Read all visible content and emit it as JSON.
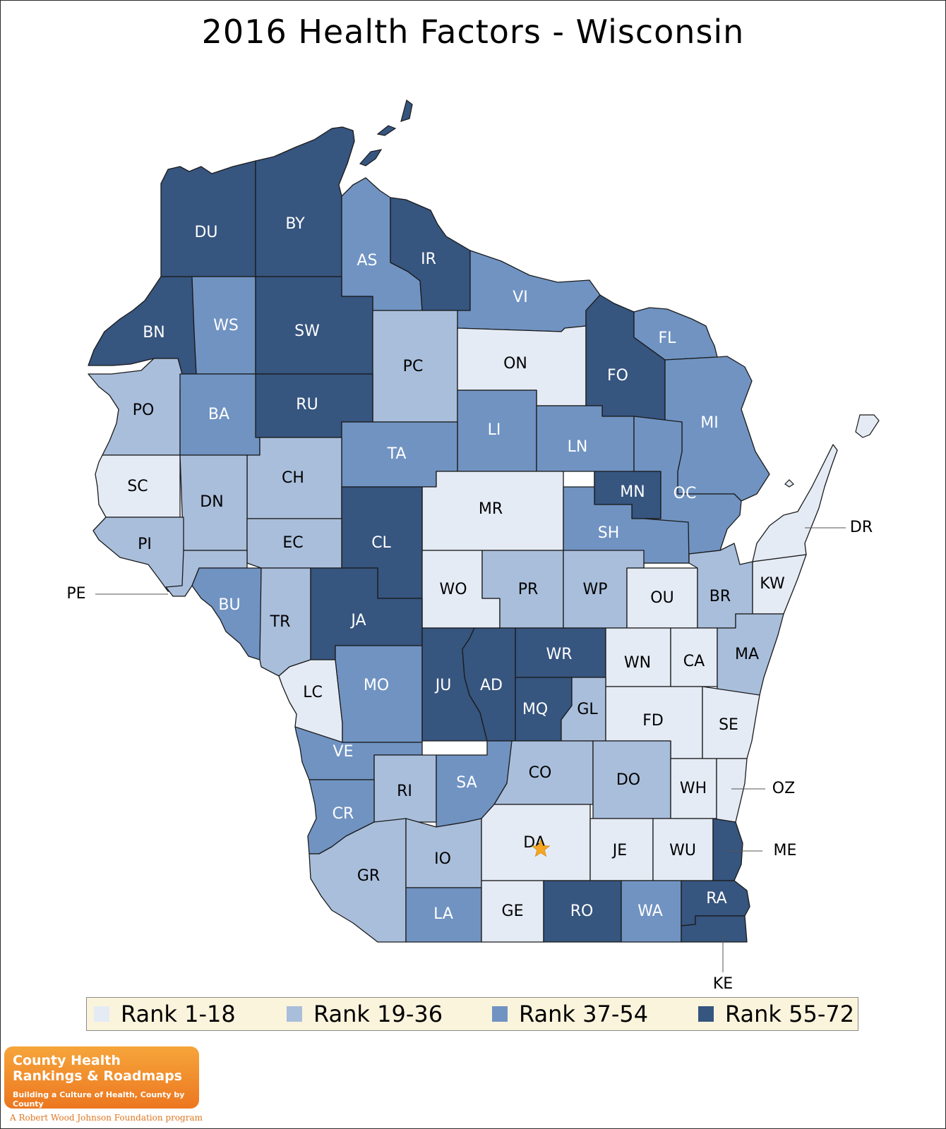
{
  "title": "2016 Health Factors - Wisconsin",
  "legend": [
    {
      "label": "Rank 1-18",
      "color": "#e4ebf5"
    },
    {
      "label": "Rank 19-36",
      "color": "#a9bedb"
    },
    {
      "label": "Rank 37-54",
      "color": "#7093c2"
    },
    {
      "label": "Rank 55-72",
      "color": "#36557f"
    }
  ],
  "counties": [
    {
      "abbr": "DU",
      "tier": 4
    },
    {
      "abbr": "BY",
      "tier": 4
    },
    {
      "abbr": "AS",
      "tier": 3
    },
    {
      "abbr": "IR",
      "tier": 4
    },
    {
      "abbr": "VI",
      "tier": 3
    },
    {
      "abbr": "BN",
      "tier": 4
    },
    {
      "abbr": "WS",
      "tier": 3
    },
    {
      "abbr": "SW",
      "tier": 4
    },
    {
      "abbr": "PC",
      "tier": 2
    },
    {
      "abbr": "ON",
      "tier": 1
    },
    {
      "abbr": "FO",
      "tier": 4
    },
    {
      "abbr": "FL",
      "tier": 3
    },
    {
      "abbr": "PO",
      "tier": 2
    },
    {
      "abbr": "BA",
      "tier": 3
    },
    {
      "abbr": "RU",
      "tier": 4
    },
    {
      "abbr": "LI",
      "tier": 3
    },
    {
      "abbr": "MI",
      "tier": 3
    },
    {
      "abbr": "TA",
      "tier": 3
    },
    {
      "abbr": "LN",
      "tier": 3
    },
    {
      "abbr": "SC",
      "tier": 1
    },
    {
      "abbr": "CH",
      "tier": 2
    },
    {
      "abbr": "DN",
      "tier": 2
    },
    {
      "abbr": "MR",
      "tier": 1
    },
    {
      "abbr": "MN",
      "tier": 4
    },
    {
      "abbr": "OC",
      "tier": 3
    },
    {
      "abbr": "CL",
      "tier": 4
    },
    {
      "abbr": "PI",
      "tier": 2
    },
    {
      "abbr": "EC",
      "tier": 2
    },
    {
      "abbr": "SH",
      "tier": 3
    },
    {
      "abbr": "DR",
      "tier": 1
    },
    {
      "abbr": "WO",
      "tier": 1
    },
    {
      "abbr": "PR",
      "tier": 2
    },
    {
      "abbr": "WP",
      "tier": 2
    },
    {
      "abbr": "OU",
      "tier": 1
    },
    {
      "abbr": "BR",
      "tier": 2
    },
    {
      "abbr": "KW",
      "tier": 1
    },
    {
      "abbr": "PE",
      "tier": 2
    },
    {
      "abbr": "BU",
      "tier": 3
    },
    {
      "abbr": "TR",
      "tier": 2
    },
    {
      "abbr": "JA",
      "tier": 4
    },
    {
      "abbr": "WR",
      "tier": 4
    },
    {
      "abbr": "WN",
      "tier": 1
    },
    {
      "abbr": "CA",
      "tier": 1
    },
    {
      "abbr": "MA",
      "tier": 2
    },
    {
      "abbr": "LC",
      "tier": 1
    },
    {
      "abbr": "MO",
      "tier": 3
    },
    {
      "abbr": "JU",
      "tier": 4
    },
    {
      "abbr": "AD",
      "tier": 4
    },
    {
      "abbr": "MQ",
      "tier": 4
    },
    {
      "abbr": "GL",
      "tier": 2
    },
    {
      "abbr": "FD",
      "tier": 1
    },
    {
      "abbr": "SE",
      "tier": 1
    },
    {
      "abbr": "VE",
      "tier": 3
    },
    {
      "abbr": "RI",
      "tier": 2
    },
    {
      "abbr": "SA",
      "tier": 3
    },
    {
      "abbr": "CO",
      "tier": 2
    },
    {
      "abbr": "DO",
      "tier": 2
    },
    {
      "abbr": "WH",
      "tier": 1
    },
    {
      "abbr": "OZ",
      "tier": 1
    },
    {
      "abbr": "CR",
      "tier": 3
    },
    {
      "abbr": "GR",
      "tier": 2
    },
    {
      "abbr": "IO",
      "tier": 2
    },
    {
      "abbr": "DA",
      "tier": 1
    },
    {
      "abbr": "JE",
      "tier": 1
    },
    {
      "abbr": "WU",
      "tier": 1
    },
    {
      "abbr": "ME",
      "tier": 4
    },
    {
      "abbr": "LA",
      "tier": 3
    },
    {
      "abbr": "GE",
      "tier": 1
    },
    {
      "abbr": "RO",
      "tier": 4
    },
    {
      "abbr": "WA",
      "tier": 3
    },
    {
      "abbr": "RA",
      "tier": 4
    },
    {
      "abbr": "KE",
      "tier": 4
    }
  ],
  "capital_marker": {
    "county": "DA",
    "icon": "star-icon",
    "color": "#f5a623"
  },
  "logo": {
    "line1": "County Health",
    "line2": "Rankings & Roadmaps",
    "tagline": "Building a Culture of Health, County by County",
    "program": "A Robert Wood Johnson Foundation program"
  }
}
